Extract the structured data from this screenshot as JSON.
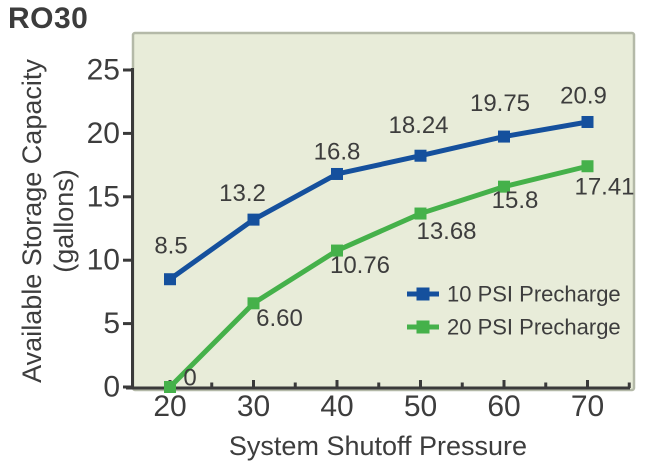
{
  "title": "RO30",
  "chart_data": {
    "type": "line",
    "x": [
      20,
      30,
      40,
      50,
      60,
      70
    ],
    "series": [
      {
        "name": "10 PSI Precharge",
        "color": "#15509d",
        "values": [
          8.5,
          13.2,
          16.8,
          18.24,
          19.75,
          20.9
        ],
        "labels": [
          "8.5",
          "13.2",
          "16.8",
          "18.24",
          "19.75",
          "20.9"
        ],
        "label_offsets": [
          [
            1,
            -33
          ],
          [
            -11,
            -26
          ],
          [
            0,
            -22
          ],
          [
            -2,
            -30
          ],
          [
            -4,
            -33
          ],
          [
            -4,
            -26
          ]
        ]
      },
      {
        "name": "20 PSI Precharge",
        "color": "#45b14a",
        "values": [
          0,
          6.6,
          10.76,
          13.68,
          15.8,
          17.41
        ],
        "labels": [
          "0",
          "6.60",
          "10.76",
          "13.68",
          "15.8",
          "17.41"
        ],
        "label_offsets": [
          [
            20,
            -9
          ],
          [
            26,
            15
          ],
          [
            23,
            15
          ],
          [
            26,
            18
          ],
          [
            11,
            14
          ],
          [
            17,
            21
          ]
        ]
      }
    ],
    "xlabel": "System Shutoff Pressure",
    "ylabel_line1": "Available Storage Capacity",
    "ylabel_line2": "(gallons)",
    "x_ticks": [
      20,
      30,
      40,
      50,
      60,
      70
    ],
    "x_minor_ticks": [
      25,
      35,
      45,
      55,
      65,
      75
    ],
    "y_ticks": [
      0,
      5,
      10,
      15,
      20,
      25
    ],
    "xlim": [
      15,
      75
    ],
    "ylim": [
      0,
      25
    ],
    "grid": false,
    "marker": "square",
    "legend_position": "inside-bottom-right",
    "colors": {
      "plot_bg": "#e8ecd9",
      "plot_border": "#b4b9a8",
      "axis": "#3a3a3a",
      "text": "#3d3d3d"
    }
  }
}
